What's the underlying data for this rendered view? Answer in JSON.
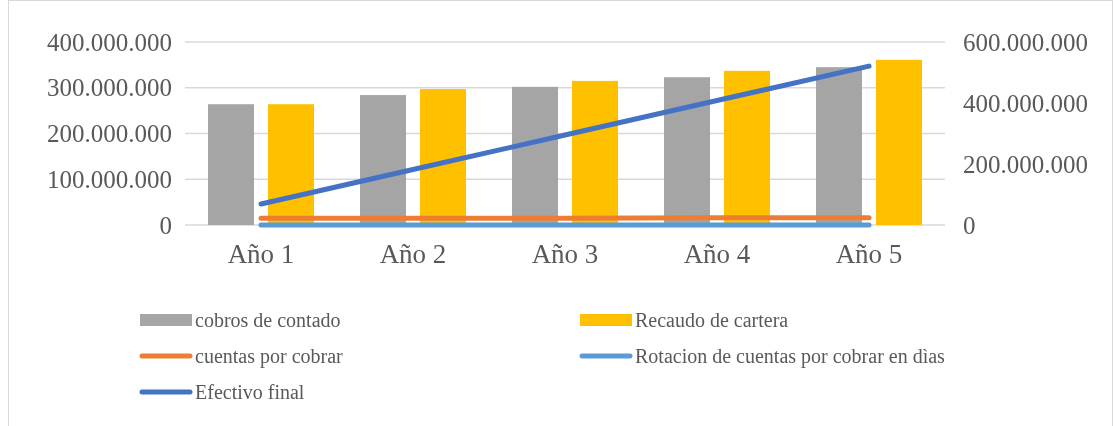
{
  "chart_data": {
    "type": "bar",
    "categories": [
      "Año 1",
      "Año 2",
      "Año 3",
      "Año 4",
      "Año 5"
    ],
    "series": [
      {
        "name": "cobros de contado",
        "color": "#a5a5a5",
        "values": [
          264000000,
          284000000,
          302000000,
          323000000,
          345000000
        ]
      },
      {
        "name": "Recaudo de cartera",
        "color": "#ffc000",
        "values": [
          264000000,
          297000000,
          315000000,
          337000000,
          361000000
        ]
      },
      {
        "name": "cuentas por cobrar",
        "type": "line",
        "color": "#ed7d31",
        "values": [
          15000000,
          15000000,
          15000000,
          16000000,
          16000000
        ]
      },
      {
        "name": "Rotacion de cuentas por cobrar en dìas",
        "type": "line",
        "color": "#5b9bd5",
        "values": [
          0,
          0,
          0,
          0,
          0
        ]
      },
      {
        "name": "Efectivo final",
        "type": "line",
        "axis": "y2",
        "color": "#4472c4",
        "values": [
          69000000,
          182000000,
          295000000,
          408000000,
          521000000
        ]
      }
    ],
    "ylim": [
      0,
      400000000
    ],
    "yticks": [
      {
        "value": 0,
        "label": "0"
      },
      {
        "value": 100000000,
        "label": "100.000.000"
      },
      {
        "value": 200000000,
        "label": "200.000.000"
      },
      {
        "value": 300000000,
        "label": "300.000.000"
      },
      {
        "value": 400000000,
        "label": "400.000.000"
      }
    ],
    "y2lim": [
      0,
      600000000
    ],
    "y2ticks": [
      {
        "value": 0,
        "label": "0"
      },
      {
        "value": 200000000,
        "label": "200.000.000"
      },
      {
        "value": 400000000,
        "label": "400.000.000"
      },
      {
        "value": 600000000,
        "label": "600.000.000"
      }
    ],
    "grid": "y",
    "legend": "bottom",
    "line_style": "solid"
  }
}
